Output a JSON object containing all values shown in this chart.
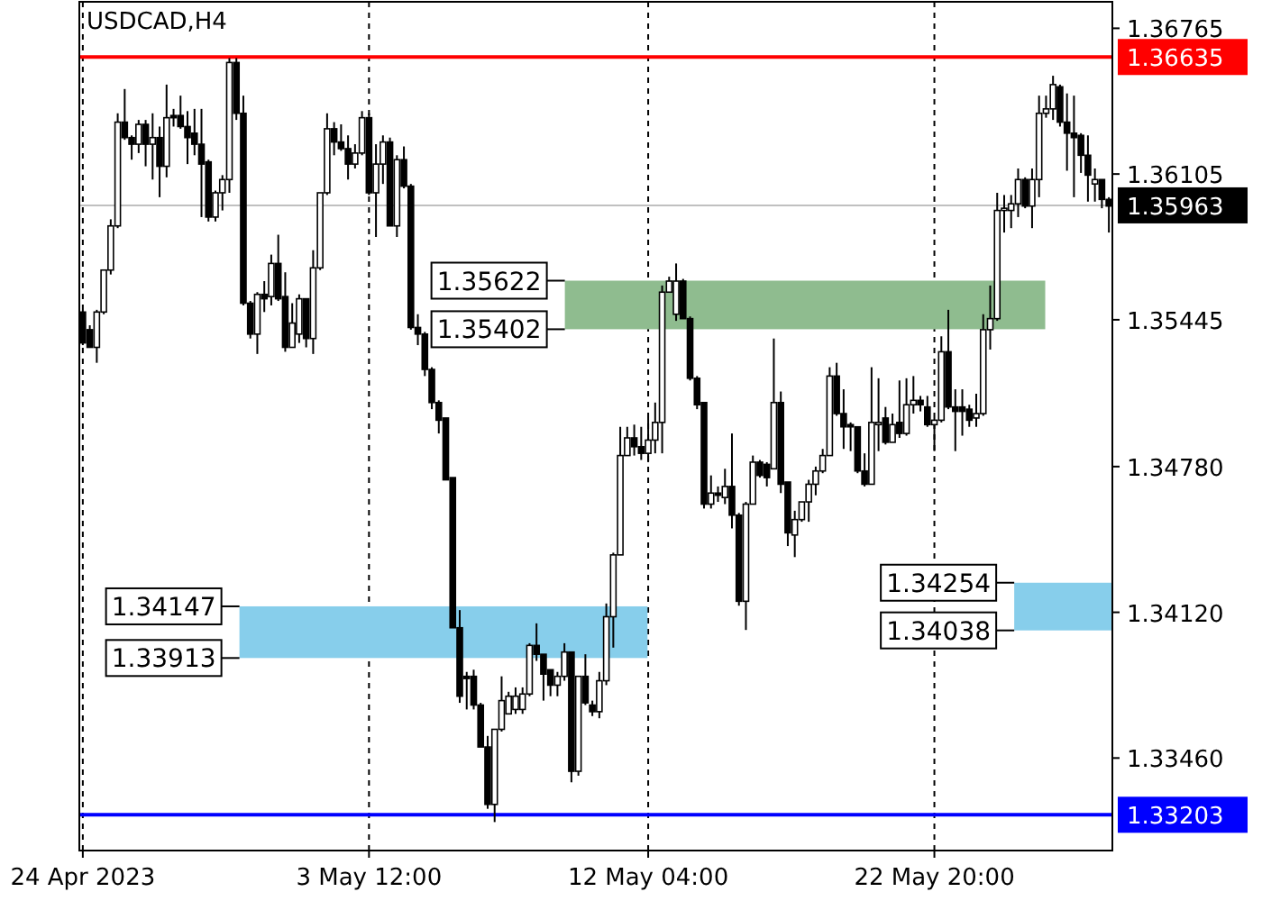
{
  "chart_data": {
    "type": "candlestick",
    "title": "USDCAD,H4",
    "categories": [
      "24 Apr 2023",
      null,
      null,
      null,
      null,
      null,
      null,
      null,
      null,
      null,
      null,
      null,
      null,
      null,
      null,
      null,
      null,
      null,
      null,
      null,
      null,
      null,
      null,
      null,
      null,
      null,
      null,
      null,
      null,
      null,
      null,
      null,
      null,
      null,
      null,
      null,
      null,
      null,
      null,
      null,
      null,
      "3 May 12:00",
      null,
      null,
      null,
      null,
      null,
      null,
      null,
      null,
      null,
      null,
      null,
      null,
      null,
      null,
      null,
      null,
      null,
      null,
      null,
      null,
      null,
      null,
      null,
      null,
      null,
      null,
      null,
      null,
      null,
      null,
      null,
      null,
      null,
      null,
      null,
      null,
      null,
      null,
      null,
      "12 May 04:00",
      null,
      null,
      null,
      null,
      null,
      null,
      null,
      null,
      null,
      null,
      null,
      null,
      null,
      null,
      null,
      null,
      null,
      null,
      null,
      null,
      null,
      null,
      null,
      null,
      null,
      null,
      null,
      null,
      null,
      null,
      null,
      null,
      null,
      null,
      null,
      null,
      null,
      null,
      null,
      null,
      "22 May 20:00",
      null,
      null,
      null,
      null,
      null,
      null,
      null,
      null,
      null,
      null,
      null,
      null,
      null,
      null,
      null,
      null,
      null,
      null,
      null,
      null,
      null,
      null,
      null,
      null,
      null
    ],
    "ohlc": [
      [
        1.3548,
        1.3549,
        1.3533,
        1.3534
      ],
      [
        1.354,
        1.3542,
        1.3532,
        1.3532
      ],
      [
        1.3532,
        1.3549,
        1.3525,
        1.3548
      ],
      [
        1.3548,
        1.3567,
        1.3547,
        1.3567
      ],
      [
        1.3567,
        1.359,
        1.3565,
        1.3587
      ],
      [
        1.3587,
        1.3638,
        1.3586,
        1.3634
      ],
      [
        1.3634,
        1.3649,
        1.3626,
        1.3627
      ],
      [
        1.3627,
        1.3628,
        1.3617,
        1.3624
      ],
      [
        1.3624,
        1.3635,
        1.362,
        1.3633
      ],
      [
        1.3633,
        1.3635,
        1.3614,
        1.3624
      ],
      [
        1.3624,
        1.3638,
        1.3608,
        1.3627
      ],
      [
        1.3627,
        1.3632,
        1.36,
        1.3614
      ],
      [
        1.3614,
        1.3651,
        1.3609,
        1.3636
      ],
      [
        1.3637,
        1.364,
        1.3632,
        1.3636
      ],
      [
        1.3637,
        1.3646,
        1.3631,
        1.3632
      ],
      [
        1.3632,
        1.3639,
        1.3615,
        1.3627
      ],
      [
        1.3629,
        1.364,
        1.3619,
        1.3624
      ],
      [
        1.3624,
        1.364,
        1.3591,
        1.3615
      ],
      [
        1.3616,
        1.3617,
        1.3589,
        1.3591
      ],
      [
        1.3591,
        1.3603,
        1.3589,
        1.3602
      ],
      [
        1.3602,
        1.361,
        1.3594,
        1.3608
      ],
      [
        1.3608,
        1.3663,
        1.3602,
        1.3661
      ],
      [
        1.3661,
        1.3663,
        1.3635,
        1.3638
      ],
      [
        1.3638,
        1.3646,
        1.3551,
        1.3552
      ],
      [
        1.3552,
        1.3553,
        1.3536,
        1.3538
      ],
      [
        1.3538,
        1.3557,
        1.3529,
        1.3556
      ],
      [
        1.3556,
        1.3562,
        1.3548,
        1.3554
      ],
      [
        1.3555,
        1.3574,
        1.3551,
        1.357
      ],
      [
        1.357,
        1.3583,
        1.3553,
        1.3554
      ],
      [
        1.3555,
        1.3566,
        1.353,
        1.3532
      ],
      [
        1.3532,
        1.3552,
        1.3532,
        1.3543
      ],
      [
        1.3538,
        1.3556,
        1.3534,
        1.3554
      ],
      [
        1.3554,
        1.3554,
        1.3532,
        1.3536
      ],
      [
        1.3536,
        1.3576,
        1.3529,
        1.3568
      ],
      [
        1.3568,
        1.3602,
        1.3567,
        1.3602
      ],
      [
        1.3602,
        1.3638,
        1.3601,
        1.3631
      ],
      [
        1.3631,
        1.3634,
        1.3619,
        1.3625
      ],
      [
        1.3625,
        1.3633,
        1.3621,
        1.3622
      ],
      [
        1.3622,
        1.3628,
        1.3608,
        1.3615
      ],
      [
        1.3615,
        1.3624,
        1.3613,
        1.362
      ],
      [
        1.362,
        1.3639,
        1.3619,
        1.3636
      ],
      [
        1.3636,
        1.3638,
        1.3601,
        1.3602
      ],
      [
        1.3602,
        1.3624,
        1.3582,
        1.3615
      ],
      [
        1.3615,
        1.3628,
        1.3606,
        1.3625
      ],
      [
        1.3625,
        1.3627,
        1.3587,
        1.3587
      ],
      [
        1.3587,
        1.3619,
        1.3582,
        1.3617
      ],
      [
        1.3617,
        1.3623,
        1.3604,
        1.3605
      ],
      [
        1.3605,
        1.3606,
        1.354,
        1.3541
      ],
      [
        1.3541,
        1.3547,
        1.3533,
        1.3538
      ],
      [
        1.3538,
        1.3539,
        1.3519,
        1.3522
      ],
      [
        1.3522,
        1.3523,
        1.3504,
        1.3507
      ],
      [
        1.3507,
        1.3508,
        1.3493,
        1.3499
      ],
      [
        1.35,
        1.35,
        1.3472,
        1.3472
      ],
      [
        1.3473,
        1.3473,
        1.3405,
        1.3405
      ],
      [
        1.3405,
        1.3413,
        1.3371,
        1.3374
      ],
      [
        1.3383,
        1.3385,
        1.3368,
        1.3382
      ],
      [
        1.3383,
        1.3386,
        1.3368,
        1.337
      ],
      [
        1.337,
        1.3371,
        1.3351,
        1.3351
      ],
      [
        1.3351,
        1.3356,
        1.3323,
        1.3325
      ],
      [
        1.3325,
        1.3359,
        1.3317,
        1.3359
      ],
      [
        1.3359,
        1.3383,
        1.3358,
        1.3372
      ],
      [
        1.3366,
        1.3376,
        1.3366,
        1.3374
      ],
      [
        1.3368,
        1.3378,
        1.3366,
        1.3374
      ],
      [
        1.3368,
        1.3378,
        1.3366,
        1.3375
      ],
      [
        1.3375,
        1.3398,
        1.3374,
        1.3397
      ],
      [
        1.3397,
        1.3407,
        1.339,
        1.3393
      ],
      [
        1.3393,
        1.3393,
        1.3372,
        1.3384
      ],
      [
        1.3386,
        1.3386,
        1.3374,
        1.3379
      ],
      [
        1.3379,
        1.3385,
        1.3374,
        1.3383
      ],
      [
        1.3383,
        1.3398,
        1.3381,
        1.3394
      ],
      [
        1.3394,
        1.3394,
        1.3335,
        1.334
      ],
      [
        1.334,
        1.3383,
        1.3338,
        1.3383
      ],
      [
        1.3383,
        1.3393,
        1.337,
        1.3371
      ],
      [
        1.337,
        1.3372,
        1.3365,
        1.3367
      ],
      [
        1.3367,
        1.3385,
        1.3364,
        1.3381
      ],
      [
        1.3381,
        1.3416,
        1.3379,
        1.341
      ],
      [
        1.341,
        1.3439,
        1.3396,
        1.3438
      ],
      [
        1.3438,
        1.3496,
        1.3438,
        1.3483
      ],
      [
        1.3483,
        1.3496,
        1.3483,
        1.3491
      ],
      [
        1.3491,
        1.3497,
        1.3483,
        1.3487
      ],
      [
        1.3487,
        1.3496,
        1.3481,
        1.3484
      ],
      [
        1.3484,
        1.35,
        1.348,
        1.349
      ],
      [
        1.349,
        1.3507,
        1.3484,
        1.3498
      ],
      [
        1.3498,
        1.356,
        1.3484,
        1.3557
      ],
      [
        1.3557,
        1.3564,
        1.3557,
        1.3562
      ],
      [
        1.3547,
        1.357,
        1.3544,
        1.3562
      ],
      [
        1.3562,
        1.3563,
        1.3545,
        1.3545
      ],
      [
        1.3545,
        1.3546,
        1.3517,
        1.3518
      ],
      [
        1.3518,
        1.3519,
        1.3504,
        1.3506
      ],
      [
        1.3507,
        1.3507,
        1.3459,
        1.3461
      ],
      [
        1.3461,
        1.3474,
        1.3459,
        1.3466
      ],
      [
        1.3466,
        1.3469,
        1.3462,
        1.3465
      ],
      [
        1.3464,
        1.3477,
        1.3461,
        1.3469
      ],
      [
        1.3469,
        1.3493,
        1.345,
        1.3456
      ],
      [
        1.3456,
        1.3457,
        1.3415,
        1.3417
      ],
      [
        1.3417,
        1.3462,
        1.3404,
        1.3461
      ],
      [
        1.3461,
        1.3483,
        1.3461,
        1.348
      ],
      [
        1.348,
        1.3481,
        1.3473,
        1.3474
      ],
      [
        1.3479,
        1.348,
        1.3469,
        1.3473
      ],
      [
        1.3477,
        1.3536,
        1.3477,
        1.3507
      ],
      [
        1.3507,
        1.3512,
        1.3466,
        1.347
      ],
      [
        1.3471,
        1.3471,
        1.3442,
        1.3448
      ],
      [
        1.3447,
        1.3458,
        1.3437,
        1.3454
      ],
      [
        1.3454,
        1.3462,
        1.3453,
        1.3462
      ],
      [
        1.3462,
        1.3472,
        1.3453,
        1.347
      ],
      [
        1.347,
        1.3478,
        1.3465,
        1.3476
      ],
      [
        1.3476,
        1.3486,
        1.3475,
        1.3483
      ],
      [
        1.3483,
        1.3523,
        1.3483,
        1.3519
      ],
      [
        1.3519,
        1.3525,
        1.3501,
        1.3502
      ],
      [
        1.3502,
        1.3513,
        1.3486,
        1.3496
      ],
      [
        1.3497,
        1.3498,
        1.3485,
        1.3496
      ],
      [
        1.3496,
        1.3496,
        1.3475,
        1.3476
      ],
      [
        1.3476,
        1.3484,
        1.3469,
        1.347
      ],
      [
        1.347,
        1.3523,
        1.347,
        1.3498
      ],
      [
        1.3497,
        1.3518,
        1.3485,
        1.3498
      ],
      [
        1.35,
        1.3505,
        1.3488,
        1.3489
      ],
      [
        1.3489,
        1.3502,
        1.3489,
        1.3497
      ],
      [
        1.3498,
        1.3517,
        1.3491,
        1.3493
      ],
      [
        1.3493,
        1.3518,
        1.3492,
        1.3506
      ],
      [
        1.3506,
        1.3519,
        1.3502,
        1.3508
      ],
      [
        1.3508,
        1.351,
        1.3503,
        1.3506
      ],
      [
        1.3505,
        1.351,
        1.3496,
        1.3497
      ],
      [
        1.3497,
        1.35,
        1.3485,
        1.3499
      ],
      [
        1.3499,
        1.3537,
        1.3498,
        1.353
      ],
      [
        1.353,
        1.3549,
        1.3504,
        1.3505
      ],
      [
        1.3505,
        1.3513,
        1.3485,
        1.3503
      ],
      [
        1.3505,
        1.3513,
        1.3492,
        1.3503
      ],
      [
        1.3504,
        1.3506,
        1.3496,
        1.3499
      ],
      [
        1.35,
        1.3511,
        1.3496,
        1.3502
      ],
      [
        1.3502,
        1.3547,
        1.3501,
        1.354
      ],
      [
        1.354,
        1.356,
        1.3531,
        1.3545
      ],
      [
        1.3545,
        1.3602,
        1.3544,
        1.3594
      ],
      [
        1.3594,
        1.3601,
        1.3584,
        1.3595
      ],
      [
        1.3594,
        1.3601,
        1.3586,
        1.3597
      ],
      [
        1.3597,
        1.3613,
        1.3591,
        1.3608
      ],
      [
        1.3608,
        1.3609,
        1.3595,
        1.3596
      ],
      [
        1.3596,
        1.3613,
        1.3586,
        1.3608
      ],
      [
        1.3608,
        1.3646,
        1.36,
        1.3638
      ],
      [
        1.3638,
        1.3646,
        1.3636,
        1.364
      ],
      [
        1.364,
        1.3655,
        1.3635,
        1.3651
      ],
      [
        1.365,
        1.3651,
        1.3632,
        1.3634
      ],
      [
        1.3634,
        1.3647,
        1.3612,
        1.3629
      ],
      [
        1.3629,
        1.3646,
        1.36,
        1.3627
      ],
      [
        1.3628,
        1.3629,
        1.3611,
        1.3619
      ],
      [
        1.3619,
        1.3628,
        1.3598,
        1.361
      ],
      [
        1.3606,
        1.3613,
        1.3598,
        1.3608
      ],
      [
        1.3608,
        1.3608,
        1.3595,
        1.3599
      ],
      [
        1.3599,
        1.36,
        1.3584,
        1.3596
      ]
    ],
    "ylim": [
      1.33041,
      1.36885
    ],
    "yticks": [
      1.36765,
      1.36105,
      1.35445,
      {
        "value": 1.3478,
        "label": "1.34780"
      },
      {
        "value": 1.3412,
        "label": "1.34120"
      },
      {
        "value": 1.3346,
        "label": "1.33460"
      }
    ],
    "grid": "x",
    "ref_lines": [
      {
        "axis": "y",
        "value": 1.36635,
        "label": "1.36635",
        "color": "#ff0000"
      },
      {
        "axis": "y",
        "value": 1.35963,
        "label": "1.35963",
        "color": "#c0c0c0"
      },
      {
        "axis": "y",
        "value": 1.33203,
        "label": "1.33203",
        "color": "#0000ff"
      }
    ],
    "annotations": [
      "1.35622",
      "1.35402",
      "1.34147",
      "1.33913",
      "1.34254",
      "1.34038"
    ],
    "bands": [
      {
        "axis": "y",
        "from": 1.35402,
        "to": 1.35622,
        "color": "#8fbc8f"
      },
      {
        "axis": "y",
        "from": 1.33913,
        "to": 1.34147,
        "color": "#87ceeb"
      },
      {
        "axis": "y",
        "from": 1.34038,
        "to": 1.34254,
        "color": "#87ceeb"
      }
    ]
  }
}
